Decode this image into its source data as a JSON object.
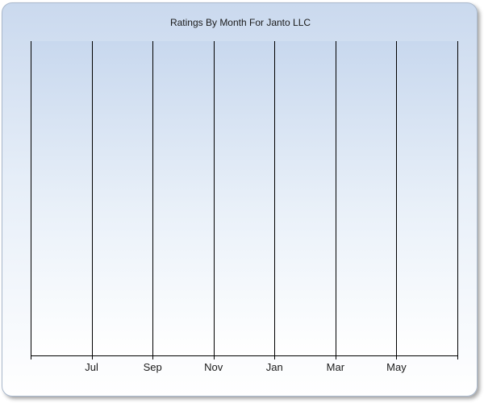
{
  "chart_data": {
    "type": "line",
    "title": "Ratings By Month For Janto LLC",
    "xlabel": "",
    "ylabel": "",
    "categories": [
      "Jul",
      "Sep",
      "Nov",
      "Jan",
      "Mar",
      "May"
    ],
    "series": [],
    "grid": true
  }
}
